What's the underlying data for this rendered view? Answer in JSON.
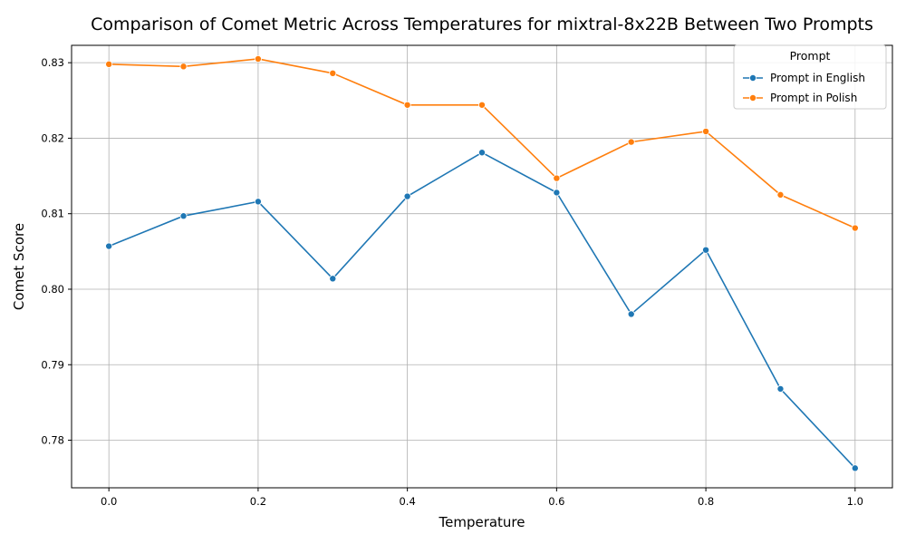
{
  "chart_data": {
    "type": "line",
    "title": "Comparison of Comet Metric Across Temperatures for mixtral-8x22B Between Two Prompts",
    "xlabel": "Temperature",
    "ylabel": "Comet Score",
    "x": [
      0.0,
      0.1,
      0.2,
      0.3,
      0.4,
      0.5,
      0.6,
      0.7,
      0.8,
      0.9,
      1.0
    ],
    "xlim": [
      -0.05,
      1.05
    ],
    "ylim": [
      0.7737,
      0.8323
    ],
    "xticks": [
      0.0,
      0.2,
      0.4,
      0.6,
      0.8,
      1.0
    ],
    "xtick_labels": [
      "0.0",
      "0.2",
      "0.4",
      "0.6",
      "0.8",
      "1.0"
    ],
    "yticks": [
      0.78,
      0.79,
      0.8,
      0.81,
      0.82,
      0.83
    ],
    "ytick_labels": [
      "0.78",
      "0.79",
      "0.80",
      "0.81",
      "0.82",
      "0.83"
    ],
    "grid": true,
    "legend": {
      "title": "Prompt",
      "placement": "top-right"
    },
    "series": [
      {
        "name": "Prompt in English",
        "color": "#1f77b4",
        "values": [
          0.8057,
          0.8097,
          0.8116,
          0.8014,
          0.8123,
          0.8181,
          0.8128,
          0.7967,
          0.8052,
          0.7868,
          0.7763
        ]
      },
      {
        "name": "Prompt in Polish",
        "color": "#ff7f0e",
        "values": [
          0.8298,
          0.8295,
          0.8305,
          0.8286,
          0.8244,
          0.8244,
          0.8147,
          0.8195,
          0.8209,
          0.8125,
          0.8081
        ]
      }
    ]
  }
}
